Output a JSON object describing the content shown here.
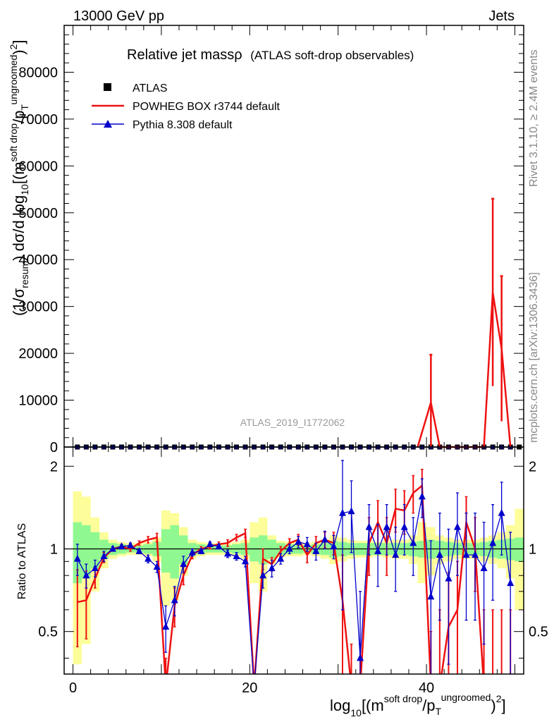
{
  "header": {
    "left": "13000 GeV pp",
    "right": "Jets"
  },
  "side": {
    "events": "Rivet 3.1.10, ≥ 2.4M events",
    "source": "mcplots.cern.ch [arXiv:1306.3436]"
  },
  "analysis_tag": "ATLAS_2019_I1772062",
  "chart_data": [
    {
      "type": "line",
      "title": "Relative jet massρ",
      "subtitle": "(ATLAS soft-drop observables)",
      "ylabel": "(1/σresum) dσ/d log10[(m soft drop / pT ungroomed)2]",
      "xlim": [
        -1,
        51
      ],
      "ylim": [
        0,
        90000
      ],
      "y_ticks": [
        0,
        10000,
        20000,
        30000,
        40000,
        50000,
        60000,
        70000,
        80000
      ],
      "x_ticks": [
        0,
        20,
        40
      ],
      "legend": [
        "ATLAS",
        "POWHEG BOX r3744 default",
        "Pythia 8.308 default"
      ],
      "legend_position": "top-left",
      "series": [
        {
          "name": "ATLAS",
          "color": "#000000",
          "marker": "square",
          "x": [
            0,
            1,
            2,
            3,
            4,
            5,
            6,
            7,
            8,
            9,
            10,
            11,
            12,
            13,
            14,
            15,
            16,
            17,
            18,
            19,
            20,
            21,
            22,
            23,
            24,
            25,
            26,
            27,
            28,
            29,
            30,
            31,
            32,
            33,
            34,
            35,
            36,
            37,
            38,
            39,
            40,
            41,
            42,
            43,
            44,
            45,
            46,
            47,
            48,
            49,
            50
          ],
          "y": [
            0,
            0,
            0,
            0,
            0,
            0,
            0,
            0,
            0,
            0,
            0,
            0,
            0,
            0,
            0,
            0,
            0,
            0,
            0,
            0,
            0,
            0,
            0,
            0,
            0,
            0,
            0,
            0,
            0,
            0,
            0,
            0,
            0,
            0,
            0,
            0,
            0,
            0,
            0,
            0,
            0,
            0,
            0,
            0,
            0,
            0,
            0,
            0,
            0,
            0,
            0
          ]
        },
        {
          "name": "POWHEG BOX r3744 default",
          "color": "#ee1111",
          "marker": "none",
          "points": [
            [
              39,
              0,
              0
            ],
            [
              40.5,
              9500,
              10200
            ],
            [
              41.5,
              0,
              0
            ],
            [
              46.5,
              0,
              0
            ],
            [
              47.5,
              33000,
              20000
            ],
            [
              48.5,
              21000,
              15500
            ],
            [
              49.5,
              0,
              0
            ]
          ]
        },
        {
          "name": "Pythia 8.308 default",
          "color": "#0000cc",
          "marker": "triangle",
          "x": [
            0,
            50
          ],
          "y": [
            0,
            0
          ]
        }
      ]
    },
    {
      "type": "line",
      "ylabel": "Ratio to ATLAS",
      "xlabel": "log10[(m soft drop / pT ungroomed)2]",
      "xlim": [
        -1,
        51
      ],
      "ylim": [
        0.35,
        2.35
      ],
      "y_ticks": [
        0.5,
        1,
        2
      ],
      "x_ticks": [
        0,
        20,
        40
      ],
      "reference_line": 1,
      "bands": {
        "inner_color": "#90f890",
        "outer_color": "#fdfd9a",
        "inner": [
          0.25,
          0.22,
          0.15,
          0.08,
          0.05,
          0.04,
          0.03,
          0.03,
          0.04,
          0.06,
          0.18,
          0.22,
          0.12,
          0.05,
          0.04,
          0.03,
          0.03,
          0.03,
          0.04,
          0.05,
          0.1,
          0.12,
          0.08,
          0.05,
          0.04,
          0.04,
          0.03,
          0.04,
          0.05,
          0.07,
          0.06,
          0.05,
          0.05,
          0.05,
          0.05,
          0.05,
          0.05,
          0.05,
          0.06,
          0.07,
          0.08,
          0.07,
          0.06,
          0.05,
          0.05,
          0.05,
          0.06,
          0.07,
          0.08,
          0.09,
          0.1
        ],
        "outer": [
          0.62,
          0.55,
          0.3,
          0.15,
          0.08,
          0.06,
          0.05,
          0.05,
          0.06,
          0.1,
          0.38,
          0.35,
          0.2,
          0.08,
          0.06,
          0.05,
          0.05,
          0.05,
          0.06,
          0.08,
          0.25,
          0.3,
          0.12,
          0.07,
          0.06,
          0.06,
          0.05,
          0.06,
          0.08,
          0.12,
          0.1,
          0.08,
          0.07,
          0.07,
          0.06,
          0.07,
          0.08,
          0.08,
          0.12,
          0.25,
          0.2,
          0.12,
          0.1,
          0.08,
          0.08,
          0.08,
          0.1,
          0.12,
          0.15,
          0.22,
          0.4
        ]
      },
      "series": [
        {
          "name": "POWHEG BOX r3744 default",
          "color": "#ee1111",
          "x": [
            0.5,
            1.5,
            2.5,
            3.5,
            4.5,
            5.5,
            6.5,
            7.5,
            8.5,
            9.5,
            10.5,
            11.5,
            12.5,
            13.5,
            14.5,
            15.5,
            16.5,
            17.5,
            18.5,
            19.5,
            20.5,
            21.5,
            22.5,
            23.5,
            24.5,
            25.5,
            26.5,
            27.5,
            28.5,
            29.5,
            30.5,
            31.5,
            32.5,
            33.5,
            34.5,
            35.5,
            36.5,
            37.5,
            38.5,
            39.5,
            40.5,
            41.5,
            42.5,
            43.5,
            44.5,
            45.5,
            46.5,
            47.5,
            48.5,
            49.5
          ],
          "y": [
            0.64,
            0.65,
            0.78,
            0.93,
            1.0,
            1.02,
            1.0,
            1.05,
            1.08,
            1.1,
            0.2,
            0.62,
            0.8,
            0.95,
            1.0,
            1.02,
            1.04,
            1.05,
            1.1,
            1.14,
            0.1,
            0.92,
            0.88,
            0.98,
            1.05,
            1.08,
            0.95,
            1.05,
            1.08,
            1.05,
            0.65,
            0.2,
            0.2,
            1.05,
            1.25,
            1.05,
            1.4,
            1.38,
            1.6,
            1.7,
            0.2,
            0.3,
            0.52,
            0.6,
            1.25,
            1.0,
            0.3,
            0.3,
            0.3,
            0.3
          ],
          "err": [
            0.2,
            0.18,
            0.06,
            0.04,
            0.02,
            0.02,
            0.02,
            0.02,
            0.03,
            0.04,
            0.2,
            0.1,
            0.06,
            0.03,
            0.02,
            0.02,
            0.02,
            0.03,
            0.03,
            0.04,
            0.15,
            0.08,
            0.05,
            0.04,
            0.04,
            0.05,
            0.06,
            0.06,
            0.07,
            0.1,
            0.3,
            0.25,
            0.25,
            0.25,
            0.25,
            0.25,
            0.25,
            0.25,
            0.25,
            0.25,
            0.3,
            0.3,
            0.3,
            0.3,
            0.3,
            0.3,
            0.3,
            0.3,
            0.3,
            0.3
          ]
        },
        {
          "name": "Pythia 8.308 default",
          "color": "#0000cc",
          "x": [
            0.5,
            1.5,
            2.5,
            3.5,
            4.5,
            5.5,
            6.5,
            7.5,
            8.5,
            9.5,
            10.5,
            11.5,
            12.5,
            13.5,
            14.5,
            15.5,
            16.5,
            17.5,
            18.5,
            19.5,
            20.5,
            21.5,
            22.5,
            23.5,
            24.5,
            25.5,
            26.5,
            27.5,
            28.5,
            29.5,
            30.5,
            31.5,
            32.5,
            33.5,
            34.5,
            35.5,
            36.5,
            37.5,
            38.5,
            39.5,
            40.5,
            41.5,
            42.5,
            43.5,
            44.5,
            45.5,
            46.5,
            47.5,
            48.5,
            49.5
          ],
          "y": [
            0.92,
            0.8,
            0.85,
            0.94,
            1.0,
            1.02,
            1.03,
            0.98,
            0.92,
            0.86,
            0.52,
            0.65,
            0.88,
            0.97,
            0.98,
            1.04,
            1.02,
            0.96,
            0.94,
            0.9,
            0.1,
            0.8,
            0.85,
            0.92,
            1.0,
            1.06,
            1.04,
            0.98,
            1.08,
            1.02,
            1.35,
            1.37,
            0.4,
            1.2,
            0.98,
            1.2,
            0.95,
            1.2,
            1.05,
            1.55,
            0.67,
            0.95,
            0.78,
            1.2,
            0.95,
            0.95,
            0.85,
            1.05,
            1.35,
            0.75
          ],
          "err": [
            0.12,
            0.08,
            0.06,
            0.04,
            0.02,
            0.02,
            0.02,
            0.02,
            0.03,
            0.04,
            0.1,
            0.08,
            0.06,
            0.03,
            0.02,
            0.02,
            0.02,
            0.03,
            0.03,
            0.04,
            0.1,
            0.08,
            0.06,
            0.04,
            0.04,
            0.05,
            0.06,
            0.07,
            0.08,
            0.1,
            0.75,
            0.4,
            0.3,
            0.25,
            0.25,
            0.25,
            0.25,
            0.25,
            0.25,
            0.25,
            0.4,
            0.4,
            0.4,
            0.4,
            0.4,
            0.4,
            0.4,
            0.4,
            0.4,
            0.4
          ]
        }
      ]
    }
  ]
}
